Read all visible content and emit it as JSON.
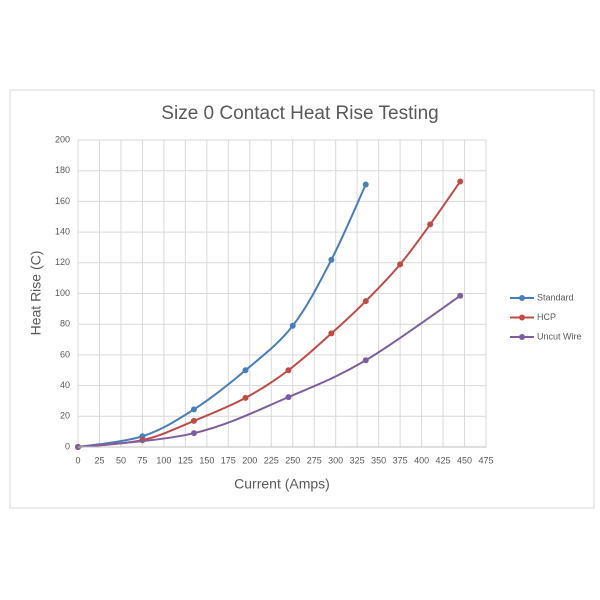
{
  "chart_data": {
    "type": "line",
    "title": "Size 0 Contact Heat Rise Testing",
    "xlabel": "Current  (Amps)",
    "ylabel": "Heat Rise (C)",
    "xlim": [
      0,
      475
    ],
    "xticks": [
      0,
      25,
      50,
      75,
      100,
      125,
      150,
      175,
      200,
      225,
      250,
      275,
      300,
      325,
      350,
      375,
      400,
      425,
      450,
      475
    ],
    "ylim": [
      0,
      200
    ],
    "yticks": [
      0,
      20,
      40,
      60,
      80,
      100,
      120,
      140,
      160,
      180,
      200
    ],
    "grid": true,
    "legend": "right",
    "series": [
      {
        "name": "Standard",
        "color": "#4a7ebb",
        "x": [
          0,
          75,
          135,
          195,
          250,
          295,
          335
        ],
        "values": [
          0,
          7,
          24.5,
          50,
          79,
          122,
          171
        ]
      },
      {
        "name": "HCP",
        "color": "#be4b48",
        "x": [
          0,
          75,
          135,
          195,
          245,
          295,
          335,
          375,
          410,
          445
        ],
        "values": [
          0,
          4.5,
          17,
          32,
          50,
          74,
          95,
          119,
          145,
          173
        ]
      },
      {
        "name": "Uncut Wire",
        "color": "#7d5fa0",
        "x": [
          0,
          135,
          245,
          335,
          445
        ],
        "values": [
          0,
          9,
          32.5,
          56.5,
          98.5
        ]
      }
    ]
  }
}
